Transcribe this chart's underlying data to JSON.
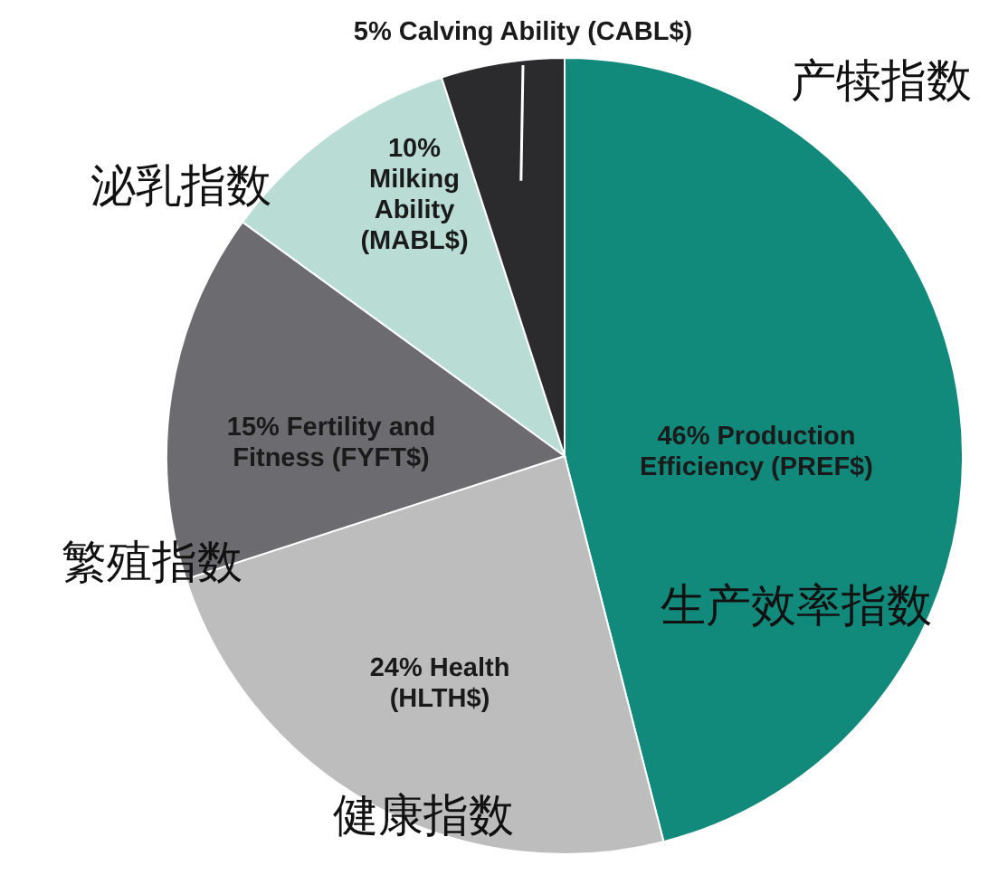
{
  "chart_data": {
    "type": "pie",
    "categories": [
      "Production Efficiency (PREF$)",
      "Health (HLTH$)",
      "Fertility and Fitness (FYFT$)",
      "Milking Ability (MABL$)",
      "Calving Ability (CABL$)"
    ],
    "values": [
      46,
      24,
      15,
      10,
      5
    ],
    "value_labels": [
      "46%",
      "24%",
      "15%",
      "10%",
      "5%"
    ],
    "colors": [
      "#128a7b",
      "#bdbdbd",
      "#6c6c70",
      "#b9ddd4",
      "#2b2b2d"
    ],
    "annotations": [
      "生产效率指数",
      "健康指数",
      "繁殖指数",
      "泌乳指数",
      "产犊指数"
    ]
  }
}
